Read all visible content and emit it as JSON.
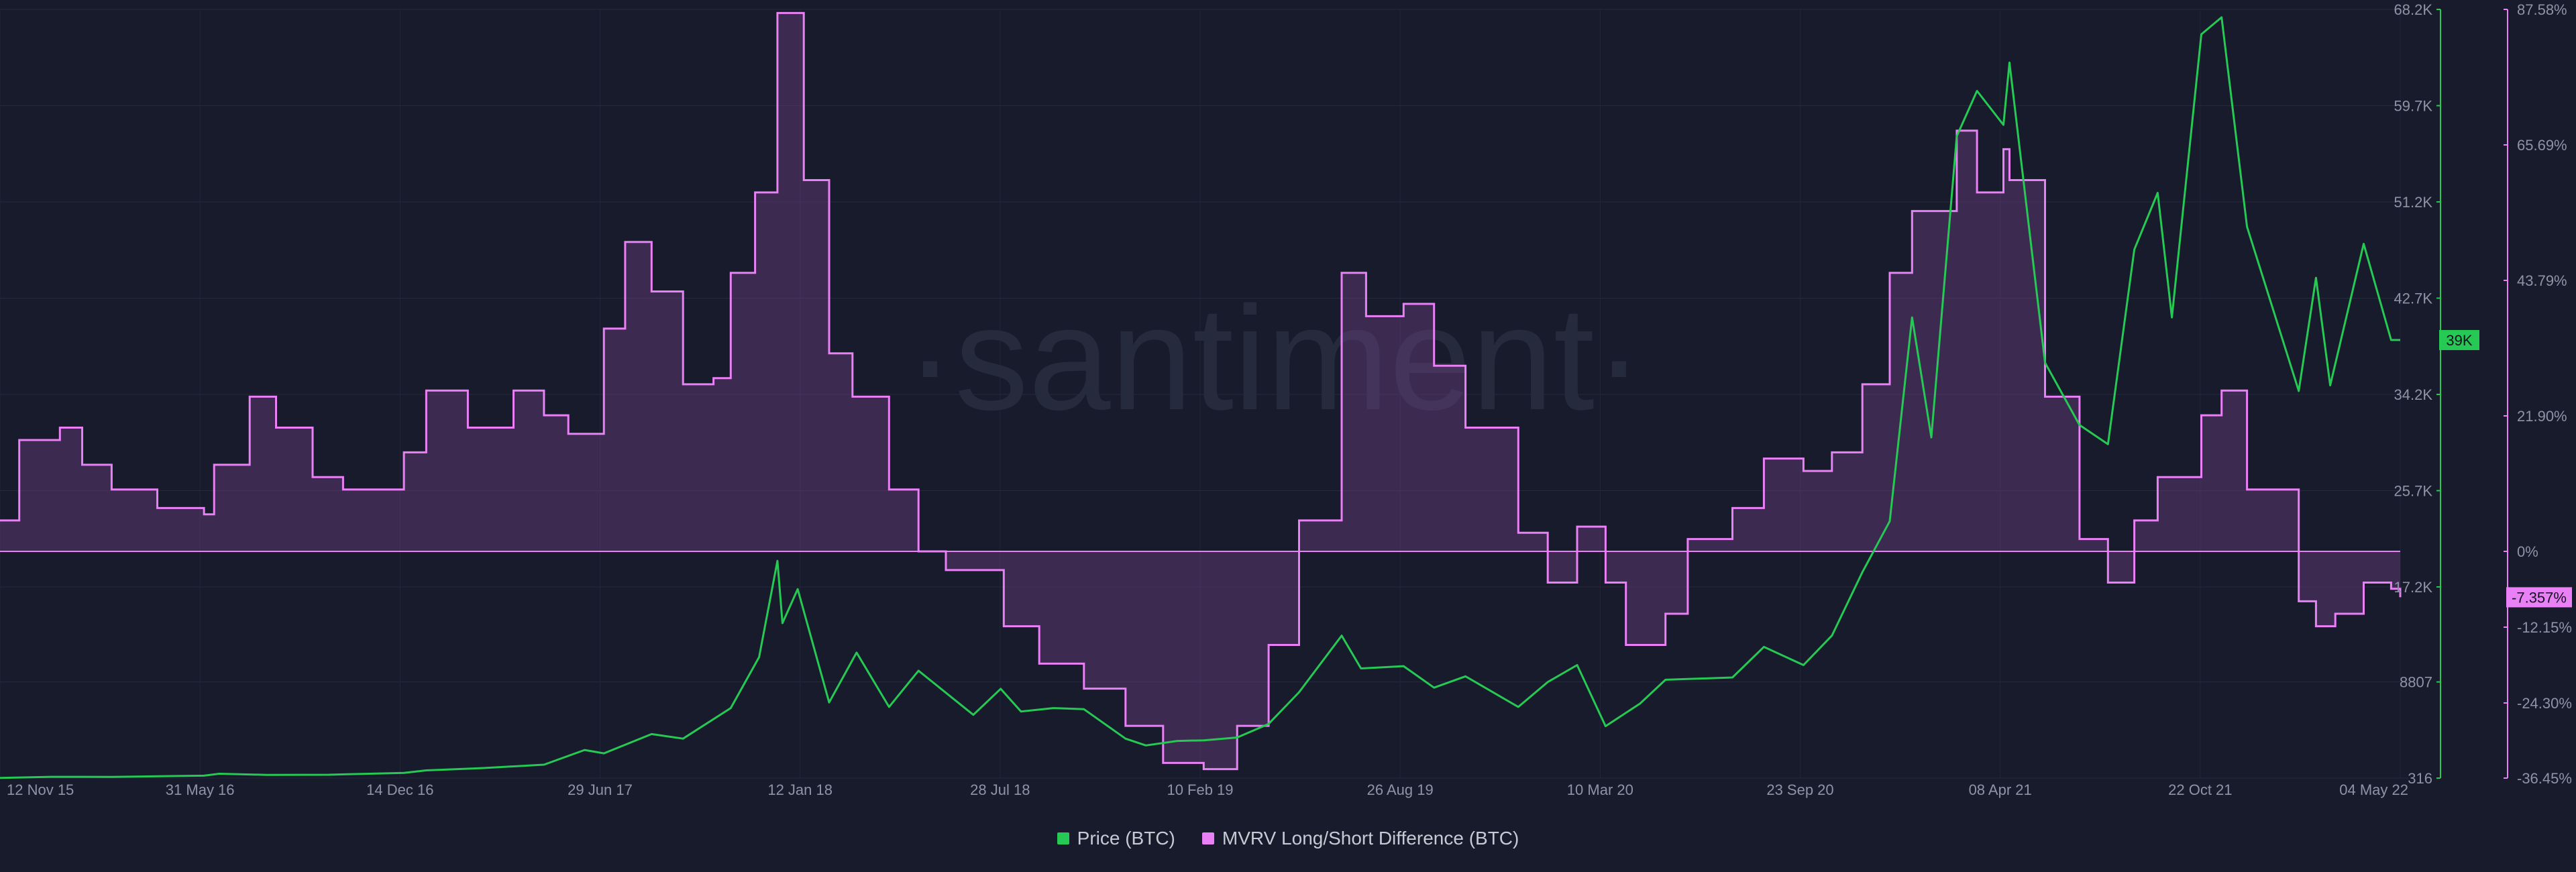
{
  "watermark": "·santiment·",
  "legend": [
    {
      "label": "Price (BTC)",
      "color": "#26c953"
    },
    {
      "label": "MVRV Long/Short Difference (BTC)",
      "color": "#e980f6"
    }
  ],
  "badges": {
    "price_current": "39K",
    "mvrv_current": "-7.357%"
  },
  "chart_data": {
    "type": "line",
    "x_ticks": [
      "12 Nov 15",
      "31 May 16",
      "14 Dec 16",
      "29 Jun 17",
      "12 Jan 18",
      "28 Jul 18",
      "10 Feb 19",
      "26 Aug 19",
      "10 Mar 20",
      "23 Sep 20",
      "08 Apr 21",
      "22 Oct 21",
      "04 May 22"
    ],
    "x_range": [
      "2015-11-12",
      "2022-05-04"
    ],
    "price_axis": {
      "ticks": [
        "68.2K",
        "59.7K",
        "51.2K",
        "42.7K",
        "34.2K",
        "25.7K",
        "17.2K",
        "8807",
        "316"
      ],
      "tick_values": [
        68200,
        59700,
        51200,
        42700,
        34200,
        25700,
        17200,
        8807,
        316
      ],
      "range": [
        316,
        68200
      ],
      "color": "#26c953"
    },
    "mvrv_axis": {
      "ticks": [
        "87.58%",
        "65.69%",
        "43.79%",
        "21.90%",
        "0%",
        "-12.15%",
        "-24.30%",
        "-36.45%"
      ],
      "tick_values": [
        87.58,
        65.69,
        43.79,
        21.9,
        0,
        -12.15,
        -24.3,
        -36.45
      ],
      "color": "#e980f6"
    },
    "series": [
      {
        "name": "Price (BTC)",
        "color": "#26c953",
        "unit": "USD",
        "points": [
          [
            "2015-11-12",
            330
          ],
          [
            "2016-01-01",
            430
          ],
          [
            "2016-03-01",
            420
          ],
          [
            "2016-05-31",
            530
          ],
          [
            "2016-06-15",
            700
          ],
          [
            "2016-08-01",
            600
          ],
          [
            "2016-10-01",
            610
          ],
          [
            "2016-12-14",
            780
          ],
          [
            "2017-01-05",
            1000
          ],
          [
            "2017-03-01",
            1200
          ],
          [
            "2017-05-01",
            1500
          ],
          [
            "2017-06-10",
            2800
          ],
          [
            "2017-06-29",
            2500
          ],
          [
            "2017-08-15",
            4200
          ],
          [
            "2017-09-15",
            3800
          ],
          [
            "2017-11-01",
            6500
          ],
          [
            "2017-11-29",
            11000
          ],
          [
            "2017-12-17",
            19500
          ],
          [
            "2017-12-22",
            14000
          ],
          [
            "2018-01-06",
            17000
          ],
          [
            "2018-02-06",
            7000
          ],
          [
            "2018-03-05",
            11400
          ],
          [
            "2018-04-06",
            6600
          ],
          [
            "2018-05-05",
            9800
          ],
          [
            "2018-06-28",
            5900
          ],
          [
            "2018-07-25",
            8200
          ],
          [
            "2018-08-14",
            6200
          ],
          [
            "2018-09-15",
            6500
          ],
          [
            "2018-10-15",
            6400
          ],
          [
            "2018-11-25",
            3800
          ],
          [
            "2018-12-15",
            3200
          ],
          [
            "2019-01-15",
            3600
          ],
          [
            "2019-02-10",
            3650
          ],
          [
            "2019-03-15",
            3900
          ],
          [
            "2019-04-15",
            5100
          ],
          [
            "2019-05-15",
            7900
          ],
          [
            "2019-06-26",
            12900
          ],
          [
            "2019-07-15",
            10000
          ],
          [
            "2019-08-26",
            10200
          ],
          [
            "2019-09-25",
            8300
          ],
          [
            "2019-10-26",
            9300
          ],
          [
            "2019-12-17",
            6600
          ],
          [
            "2020-01-15",
            8800
          ],
          [
            "2020-02-13",
            10300
          ],
          [
            "2020-03-12",
            4900
          ],
          [
            "2020-04-15",
            6900
          ],
          [
            "2020-05-10",
            9000
          ],
          [
            "2020-07-15",
            9200
          ],
          [
            "2020-08-15",
            11900
          ],
          [
            "2020-09-23",
            10300
          ],
          [
            "2020-10-21",
            12900
          ],
          [
            "2020-11-20",
            18500
          ],
          [
            "2020-12-17",
            23000
          ],
          [
            "2021-01-08",
            41000
          ],
          [
            "2021-01-27",
            30400
          ],
          [
            "2021-02-21",
            57000
          ],
          [
            "2021-03-13",
            61000
          ],
          [
            "2021-04-08",
            58000
          ],
          [
            "2021-04-14",
            63500
          ],
          [
            "2021-05-19",
            37000
          ],
          [
            "2021-06-22",
            31500
          ],
          [
            "2021-07-20",
            29800
          ],
          [
            "2021-08-15",
            47000
          ],
          [
            "2021-09-07",
            52000
          ],
          [
            "2021-09-21",
            41000
          ],
          [
            "2021-10-20",
            66000
          ],
          [
            "2021-11-09",
            67500
          ],
          [
            "2021-12-04",
            49000
          ],
          [
            "2022-01-24",
            34500
          ],
          [
            "2022-02-10",
            44500
          ],
          [
            "2022-02-24",
            35000
          ],
          [
            "2022-03-29",
            47500
          ],
          [
            "2022-04-25",
            39000
          ],
          [
            "2022-05-04",
            39000
          ]
        ]
      },
      {
        "name": "MVRV Long/Short Difference (BTC)",
        "color": "#e980f6",
        "unit": "%",
        "points": [
          [
            "2015-11-12",
            5
          ],
          [
            "2015-12-01",
            18
          ],
          [
            "2016-01-10",
            20
          ],
          [
            "2016-02-01",
            14
          ],
          [
            "2016-03-01",
            10
          ],
          [
            "2016-04-15",
            7
          ],
          [
            "2016-05-31",
            6
          ],
          [
            "2016-06-10",
            14
          ],
          [
            "2016-07-15",
            25
          ],
          [
            "2016-08-10",
            20
          ],
          [
            "2016-09-15",
            12
          ],
          [
            "2016-10-15",
            10
          ],
          [
            "2016-12-14",
            16
          ],
          [
            "2017-01-05",
            26
          ],
          [
            "2017-02-15",
            20
          ],
          [
            "2017-04-01",
            26
          ],
          [
            "2017-05-01",
            22
          ],
          [
            "2017-05-25",
            19
          ],
          [
            "2017-06-29",
            36
          ],
          [
            "2017-07-20",
            50
          ],
          [
            "2017-08-15",
            42
          ],
          [
            "2017-09-15",
            27
          ],
          [
            "2017-10-15",
            28
          ],
          [
            "2017-11-01",
            45
          ],
          [
            "2017-11-25",
            58
          ],
          [
            "2017-12-17",
            87
          ],
          [
            "2018-01-12",
            60
          ],
          [
            "2018-02-06",
            32
          ],
          [
            "2018-03-01",
            25
          ],
          [
            "2018-04-06",
            10
          ],
          [
            "2018-05-05",
            0
          ],
          [
            "2018-06-01",
            -3
          ],
          [
            "2018-07-28",
            -12
          ],
          [
            "2018-09-01",
            -18
          ],
          [
            "2018-10-15",
            -22
          ],
          [
            "2018-11-25",
            -28
          ],
          [
            "2019-01-01",
            -34
          ],
          [
            "2019-02-10",
            -35
          ],
          [
            "2019-03-15",
            -28
          ],
          [
            "2019-04-15",
            -15
          ],
          [
            "2019-05-15",
            5
          ],
          [
            "2019-06-26",
            45
          ],
          [
            "2019-07-20",
            38
          ],
          [
            "2019-08-26",
            40
          ],
          [
            "2019-09-25",
            30
          ],
          [
            "2019-10-26",
            20
          ],
          [
            "2019-12-17",
            3
          ],
          [
            "2020-01-15",
            -5
          ],
          [
            "2020-02-13",
            4
          ],
          [
            "2020-03-12",
            -5
          ],
          [
            "2020-04-01",
            -15
          ],
          [
            "2020-05-10",
            -10
          ],
          [
            "2020-06-01",
            2
          ],
          [
            "2020-07-15",
            7
          ],
          [
            "2020-08-15",
            15
          ],
          [
            "2020-09-23",
            13
          ],
          [
            "2020-10-21",
            16
          ],
          [
            "2020-11-20",
            27
          ],
          [
            "2020-12-17",
            45
          ],
          [
            "2021-01-08",
            55
          ],
          [
            "2021-02-21",
            68
          ],
          [
            "2021-03-13",
            58
          ],
          [
            "2021-04-08",
            65
          ],
          [
            "2021-04-14",
            60
          ],
          [
            "2021-05-19",
            25
          ],
          [
            "2021-06-22",
            2
          ],
          [
            "2021-07-20",
            -5
          ],
          [
            "2021-08-15",
            5
          ],
          [
            "2021-09-07",
            12
          ],
          [
            "2021-10-20",
            22
          ],
          [
            "2021-11-09",
            26
          ],
          [
            "2021-12-04",
            10
          ],
          [
            "2022-01-24",
            -8
          ],
          [
            "2022-02-10",
            -12
          ],
          [
            "2022-03-01",
            -10
          ],
          [
            "2022-03-29",
            -5
          ],
          [
            "2022-04-25",
            -6
          ],
          [
            "2022-05-04",
            -7.357
          ]
        ]
      }
    ],
    "xlabel": "",
    "ylabel": "",
    "grid": true,
    "legend_position": "bottom-center"
  }
}
